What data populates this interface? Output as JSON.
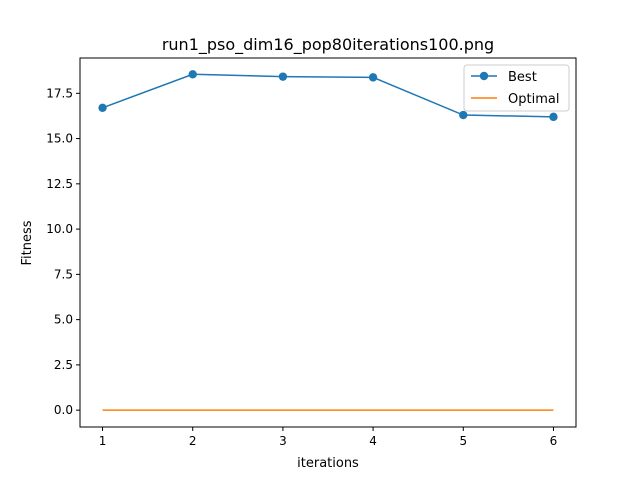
{
  "chart_data": {
    "type": "line",
    "title": "run1_pso_dim16_pop80iterations100.png",
    "xlabel": "iterations",
    "ylabel": "Fitness",
    "xlim": [
      0.75,
      6.25
    ],
    "ylim": [
      -0.93,
      19.45
    ],
    "x": [
      1,
      2,
      3,
      4,
      5,
      6
    ],
    "xticks": [
      "1",
      "2",
      "3",
      "4",
      "5",
      "6"
    ],
    "yticks": [
      "0.0",
      "2.5",
      "5.0",
      "7.5",
      "10.0",
      "12.5",
      "15.0",
      "17.5"
    ],
    "grid": false,
    "legend_position": "top-right",
    "series": [
      {
        "name": "Best",
        "values": [
          16.7,
          18.55,
          18.42,
          18.38,
          16.3,
          16.2
        ],
        "color": "#1f77b4",
        "marker": "circle"
      },
      {
        "name": "Optimal",
        "values": [
          0,
          0,
          0,
          0,
          0,
          0
        ],
        "color": "#ff7f0e",
        "marker": "none"
      }
    ]
  }
}
